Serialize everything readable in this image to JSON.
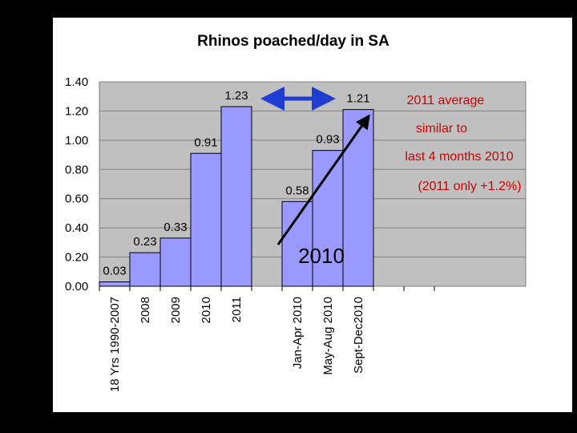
{
  "chart_data": {
    "type": "bar",
    "title": "Rhinos poached/day in SA",
    "xlabel": "",
    "ylabel": "",
    "ylim": [
      0,
      1.4
    ],
    "yticks": [
      "0.00",
      "0.20",
      "0.40",
      "0.60",
      "0.80",
      "1.00",
      "1.20",
      "1.40"
    ],
    "grid": "horizontal",
    "categories": [
      "18 Yrs 1990-2007",
      "2008",
      "2009",
      "2010",
      "2011",
      "",
      "Jan-Apr 2010",
      "May-Aug 2010",
      "Sept-Dec2010",
      "",
      ""
    ],
    "values": [
      0.03,
      0.23,
      0.33,
      0.91,
      1.23,
      null,
      0.58,
      0.93,
      1.21,
      null,
      null
    ],
    "data_labels": [
      "0.03",
      "0.23",
      "0.33",
      "0.91",
      "1.23",
      "",
      "0.58",
      "0.93",
      "1.21",
      "",
      ""
    ],
    "annotations": {
      "note_lines": [
        "2011 average",
        "similar to",
        "last 4 months 2010",
        "(2011 only +1.2%)"
      ],
      "year_label": "2010"
    },
    "colors": {
      "bar_fill": "#9999ff",
      "bar_stroke": "#000000",
      "plot_bg": "#c0c0c0",
      "note_text": "#cc0000",
      "double_arrow": "#1f3ed1",
      "trend_arrow": "#000000"
    }
  }
}
